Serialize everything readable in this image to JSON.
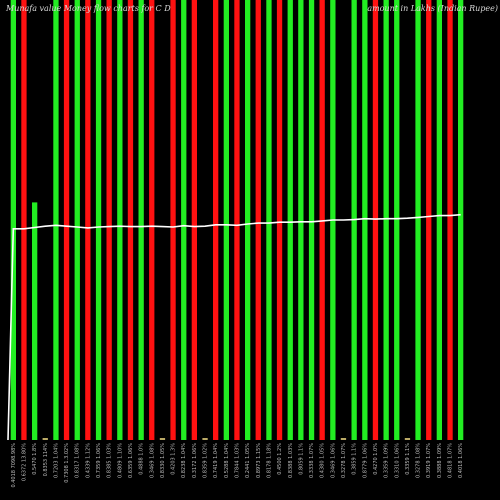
{
  "header": {
    "title_left": "Munafa value Money flow charts for C D",
    "title_middle": "B R",
    "title_right": "amount in Lakhs (Indian Rupee)"
  },
  "chart_data": {
    "type": "bar",
    "description_overlay": "volume bars colored by up/down day with price line",
    "colors": {
      "up": "#22ee22",
      "down": "#ff1111",
      "flat": "#bbaa66",
      "line": "#ffffff"
    },
    "ylim": [
      0,
      100
    ],
    "categories": [
      "0.4018 7098.98%",
      "0.6372 13.80%",
      "0.5470 1.8%",
      "0.8353 114%",
      "0.7203 1.04%",
      "0.7308 1.3.02%",
      "0.8317 1.08%",
      "0.4339 1.12%",
      "0.7359 1.06%",
      "0.8385 1.03%",
      "0.4809 1.10%",
      "0.6359 1.06%",
      "0.4888 1.0%",
      "0.3469 1.08%",
      "0.8330 1.05%",
      "0.4203 1.3%",
      "0.8238 1.04%",
      "0.3172 1.06%",
      "0.8359 1.02%",
      "0.7419 1.04%",
      "0.5288 1.04%",
      "0.7844 1.03%",
      "0.2441 1.05%",
      "0.8973 1.15%",
      "0.8178 1.18%",
      "0.4500 1.2%",
      "0.8388 1.03%",
      "0.8059 1.1%",
      "0.3338 1.07%",
      "0.4380 1.05%",
      "0.3469 1.06%",
      "0.3278 1.07%",
      "0.3859 1.1%",
      "0.8779 1.06%",
      "0.4270 1.0%",
      "0.3359 1.09%",
      "0.3310 1.06%",
      "0.3359 1.1%",
      "0.3278 1.08%",
      "0.3919 1.07%",
      "0.3888 1.09%",
      "0.4818 1.07%",
      "0.4018 1.06%"
    ],
    "values": [
      100,
      100,
      54,
      2,
      100,
      100,
      100,
      100,
      100,
      100,
      100,
      100,
      100,
      100,
      100,
      100,
      100,
      100,
      100,
      100,
      100,
      100,
      100,
      100,
      100,
      100,
      100,
      100,
      100,
      100,
      100,
      100,
      100,
      100,
      100,
      100,
      100,
      100,
      100,
      100,
      100,
      100,
      100
    ],
    "directions": [
      "up",
      "down",
      "up",
      "flat",
      "up",
      "down",
      "up",
      "down",
      "up",
      "down",
      "up",
      "down",
      "up",
      "down",
      "flat",
      "down",
      "up",
      "down",
      "flat",
      "down",
      "up",
      "down",
      "up",
      "down",
      "up",
      "down",
      "up",
      "up",
      "up",
      "down",
      "up",
      "flat",
      "up",
      "up",
      "down",
      "up",
      "up",
      "flat",
      "up",
      "down",
      "up",
      "down",
      "up"
    ],
    "price_line": [
      48,
      48,
      48.3,
      48.6,
      48.8,
      48.6,
      48.4,
      48.2,
      48.4,
      48.5,
      48.6,
      48.5,
      48.5,
      48.6,
      48.5,
      48.4,
      48.7,
      48.5,
      48.6,
      48.9,
      48.9,
      48.8,
      49.1,
      49.3,
      49.3,
      49.5,
      49.5,
      49.6,
      49.6,
      49.8,
      50,
      50,
      50.1,
      50.3,
      50.2,
      50.3,
      50.3,
      50.4,
      50.6,
      50.8,
      51,
      51,
      51.2
    ],
    "small_labels": [
      "B",
      "B"
    ]
  }
}
